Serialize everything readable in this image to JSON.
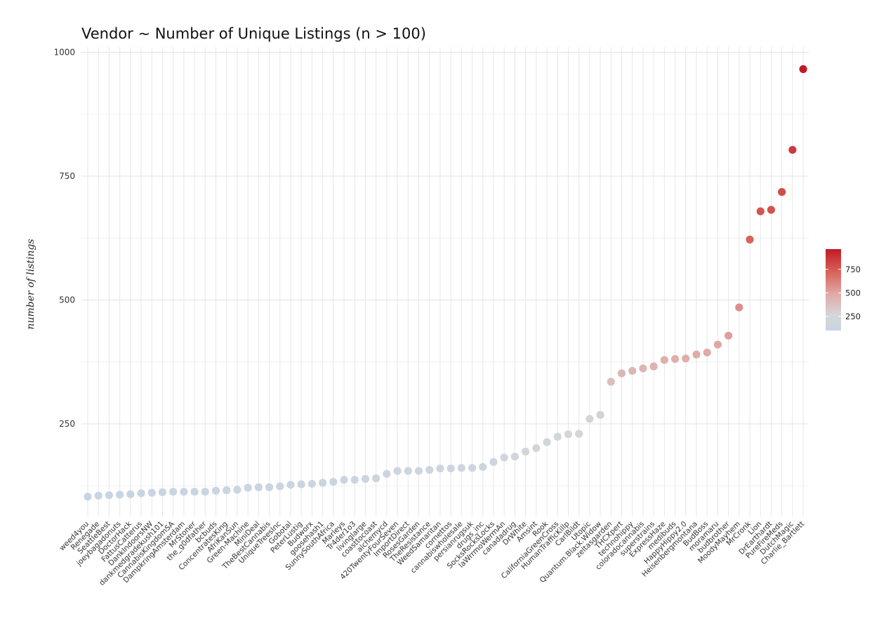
{
  "chart_data": {
    "type": "scatter",
    "title": "Vendor ~ Number of Unique Listings (n > 100)",
    "xlabel": "",
    "ylabel": "number of listings",
    "ylim": [
      65,
      1000
    ],
    "yticks": [
      250,
      500,
      750,
      1000
    ],
    "grid": true,
    "legend": {
      "type": "colorbar",
      "position": "right",
      "ticks": [
        250,
        500,
        750
      ],
      "range": [
        100,
        965
      ],
      "colors": [
        "#c7d5e2",
        "#e8cfcf",
        "#d8645c",
        "#c01a26"
      ]
    },
    "categories": [
      "weed4you",
      "Renegade",
      "SeattleBest",
      "joeybagadonuts",
      "DoctorHack",
      "FattusCatterus",
      "DankIndoorsNW",
      "dankmedgradekush101",
      "CannabisKingdomSA",
      "DampkringAmsterdam",
      "MrStoner",
      "the_g0dfather",
      "bcbuds",
      "ConcentratesKing",
      "AfriKanSun",
      "Green-Machine",
      "MiniDeal",
      "TheBestCannabis",
      "UniqueTreesInc",
      "Gobotal",
      "PeterLustig",
      "Budworx",
      "goosehash1",
      "SunnySouthAfrica",
      "Marleys",
      "Tr4der1o3",
      "livinglarge",
      "coasttocoast",
      "alchemycd",
      "420TwentyFourSeven",
      "ImportDirect",
      "RosesGarden",
      "TheResistance",
      "WeedSamaritan",
      "cornettos",
      "cannabiswholesale",
      "persianrugsuk",
      "drugs_inc",
      "SocksRocksLocks",
      "laWrrmoWermAn",
      "canadadrug",
      "DrWhite",
      "Amsint",
      "Rook",
      "CaliforniaGreenCross",
      "HumanTrafficKillp",
      "CarlBildt",
      "Utopic",
      "Quantum.Black.Widow",
      "zeltasgarden",
      "THCXpert",
      "technohippy",
      "coloradocannabis",
      "superstrains",
      "ExpressHaze",
      "medibuds",
      "HappyHippy2.0",
      "Heisenbergmontana",
      "BudBoss",
      "moramaru",
      "budbrother",
      "MoodyMayhem",
      "MrCronk",
      "Lion",
      "DrEarthardt",
      "PureFireMeds",
      "DutchMagic",
      "Charlie_Bartlett"
    ],
    "values": [
      103,
      105,
      106,
      107,
      108,
      110,
      111,
      112,
      113,
      113,
      113,
      113,
      115,
      116,
      117,
      121,
      122,
      122,
      124,
      127,
      128,
      129,
      131,
      133,
      137,
      137,
      139,
      140,
      149,
      155,
      155,
      155,
      157,
      160,
      160,
      161,
      161,
      163,
      173,
      182,
      184,
      194,
      201,
      213,
      224,
      229,
      230,
      260,
      268,
      335,
      352,
      357,
      362,
      366,
      379,
      381,
      382,
      390,
      394,
      410,
      428,
      485,
      622,
      679,
      682,
      718,
      803,
      966
    ]
  }
}
